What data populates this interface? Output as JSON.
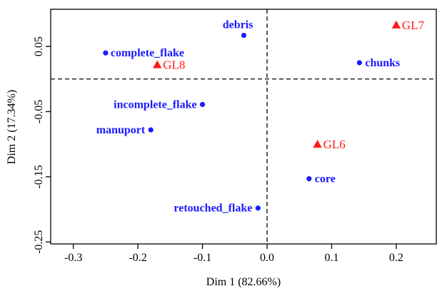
{
  "chart_data": {
    "type": "scatter",
    "xlabel": "Dim 1 (82.66%)",
    "ylabel": "Dim 2 (17.34%)",
    "xlim": [
      -0.335,
      0.262
    ],
    "ylim": [
      -0.253,
      0.107
    ],
    "xticks": [
      {
        "value": -0.3,
        "label": "-0.3"
      },
      {
        "value": -0.2,
        "label": "-0.2"
      },
      {
        "value": -0.1,
        "label": "-0.1"
      },
      {
        "value": 0.0,
        "label": "0.0"
      },
      {
        "value": 0.1,
        "label": "0.1"
      },
      {
        "value": 0.2,
        "label": "0.2"
      }
    ],
    "yticks": [
      {
        "value": 0.05,
        "label": "0.05"
      },
      {
        "value": -0.05,
        "label": "-0.05"
      },
      {
        "value": -0.15,
        "label": "-0.15"
      },
      {
        "value": -0.25,
        "label": "-0.25"
      }
    ],
    "reference_lines": {
      "x": 0,
      "y": 0,
      "style": "dashed"
    },
    "grid": false,
    "series": [
      {
        "marker": "circle",
        "color": "#1a1aff",
        "points": [
          {
            "label": "debris",
            "x": -0.036,
            "y": 0.067
          },
          {
            "label": "complete_flake",
            "x": -0.25,
            "y": 0.04
          },
          {
            "label": "chunks",
            "x": 0.143,
            "y": 0.025
          },
          {
            "label": "incomplete_flake",
            "x": -0.1,
            "y": -0.039
          },
          {
            "label": "manuport",
            "x": -0.18,
            "y": -0.078
          },
          {
            "label": "core",
            "x": 0.065,
            "y": -0.153
          },
          {
            "label": "retouched_flake",
            "x": -0.014,
            "y": -0.198
          }
        ]
      },
      {
        "marker": "triangle",
        "color": "#ff1a1a",
        "points": [
          {
            "label": "GL7",
            "x": 0.2,
            "y": 0.083
          },
          {
            "label": "GL8",
            "x": -0.17,
            "y": 0.022
          },
          {
            "label": "GL6",
            "x": 0.078,
            "y": -0.1
          }
        ]
      }
    ]
  }
}
